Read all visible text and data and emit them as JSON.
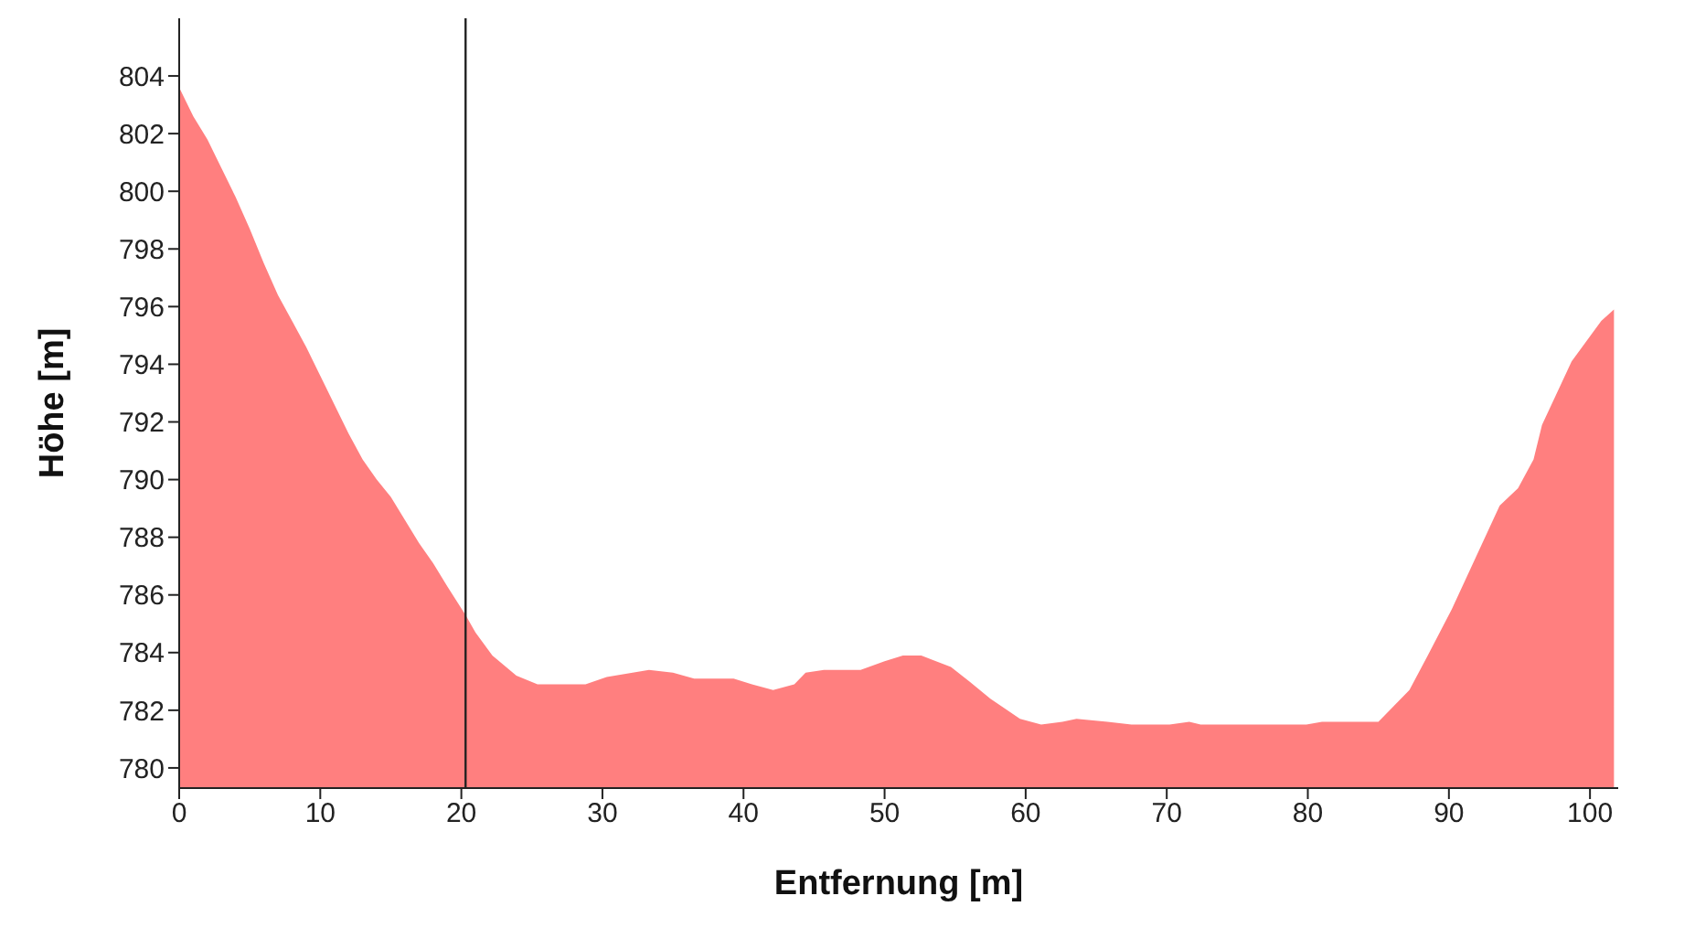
{
  "chart_data": {
    "type": "area",
    "xlabel": "Entfernung [m]",
    "ylabel": "Höhe [m]",
    "x": [
      0,
      1,
      2,
      3,
      4,
      5,
      6,
      7,
      8,
      9,
      10,
      11,
      12,
      13,
      14,
      15,
      16,
      17,
      18,
      19,
      20.3,
      21,
      22.2,
      23.9,
      25.4,
      28.8,
      30.3,
      33.3,
      35,
      36.5,
      39.3,
      40.6,
      42.1,
      43.6,
      44.4,
      45.7,
      48.3,
      50,
      51.3,
      52.6,
      54.7,
      56,
      57.5,
      59.6,
      61.1,
      62.6,
      63.6,
      65.8,
      67.5,
      70.2,
      71.6,
      72.4,
      79.9,
      81,
      85,
      87.2,
      88.5,
      90.2,
      91.9,
      93.6,
      94.9,
      96,
      96.6,
      98.7,
      100.8,
      101.7
    ],
    "series": [
      {
        "color": "#ff7f7f",
        "values": [
          803.6,
          802.6,
          801.8,
          800.8,
          799.8,
          798.7,
          797.5,
          796.4,
          795.5,
          794.6,
          793.6,
          792.6,
          791.6,
          790.7,
          790,
          789.4,
          788.6,
          787.8,
          787.1,
          786.3,
          785.3,
          784.7,
          783.9,
          783.2,
          782.9,
          782.9,
          783.15,
          783.4,
          783.3,
          783.1,
          783.1,
          782.9,
          782.7,
          782.9,
          783.3,
          783.4,
          783.4,
          783.7,
          783.9,
          783.9,
          783.5,
          783,
          782.4,
          781.7,
          781.5,
          781.6,
          781.7,
          781.6,
          781.5,
          781.5,
          781.6,
          781.5,
          781.5,
          781.6,
          781.6,
          782.7,
          783.9,
          785.5,
          787.3,
          789.1,
          789.7,
          790.7,
          791.9,
          794.1,
          795.5,
          795.9
        ]
      }
    ],
    "xlim": [
      0,
      102
    ],
    "ylim": [
      779.3,
      806
    ],
    "xticks": [
      0,
      10,
      20,
      30,
      40,
      50,
      60,
      70,
      80,
      90,
      100
    ],
    "yticks": [
      780,
      782,
      784,
      786,
      788,
      790,
      792,
      794,
      796,
      798,
      800,
      802,
      804
    ],
    "ref_lines": [
      {
        "axis": "x",
        "value": 20.3,
        "color": "#222222"
      }
    ]
  }
}
